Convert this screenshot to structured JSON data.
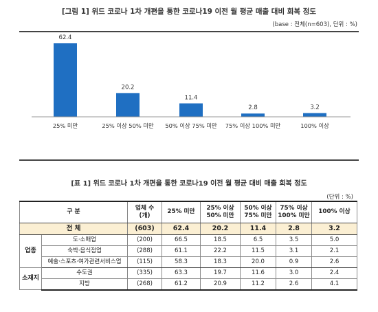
{
  "figure": {
    "title": "[그림 1] 위드 코로나 1차 개편을 통한 코로나19 이전 월 평균 매출 대비 회복 정도",
    "note": "(base : 전체(n=603), 단위 : %)"
  },
  "chart_data": {
    "type": "bar",
    "categories": [
      "25% 미만",
      "25% 이상 50% 미만",
      "50% 이상 75% 미만",
      "75% 이상 100% 미만",
      "100% 이상"
    ],
    "values": [
      62.4,
      20.2,
      11.4,
      2.8,
      3.2
    ],
    "value_labels": [
      "62.4",
      "20.2",
      "11.4",
      "2.8",
      "3.2"
    ],
    "ylim": [
      0,
      70
    ],
    "bar_color": "#1f6fc2",
    "grid": false
  },
  "table": {
    "title": "[표 1] 위드 코로나 1차 개편을 통한 코로나19 이전 월 평균 대비 매출 회복 정도",
    "unit": "(단위 : %)",
    "headers": {
      "category": "구  분",
      "count_line1": "업체 수",
      "count_line2": "(개)",
      "c1": "25% 미만",
      "c2_line1": "25% 이상",
      "c2_line2": "50% 미만",
      "c3_line1": "50% 이상",
      "c3_line2": "75% 미만",
      "c4_line1": "75% 이상",
      "c4_line2": "100% 미만",
      "c5": "100% 이상"
    },
    "total": {
      "label": "전  체",
      "count": "(603)",
      "values": [
        "62.4",
        "20.2",
        "11.4",
        "2.8",
        "3.2"
      ]
    },
    "groups": [
      {
        "name": "업종",
        "rows": [
          {
            "label": "도·소매업",
            "count": "(200)",
            "values": [
              "66.5",
              "18.5",
              "6.5",
              "3.5",
              "5.0"
            ]
          },
          {
            "label": "숙박·음식점업",
            "count": "(288)",
            "values": [
              "61.1",
              "22.2",
              "11.5",
              "3.1",
              "2.1"
            ]
          },
          {
            "label": "예술·스포츠·여가관련서비스업",
            "count": "(115)",
            "values": [
              "58.3",
              "18.3",
              "20.0",
              "0.9",
              "2.6"
            ]
          }
        ]
      },
      {
        "name": "소재지",
        "rows": [
          {
            "label": "수도권",
            "count": "(335)",
            "values": [
              "63.3",
              "19.7",
              "11.6",
              "3.0",
              "2.4"
            ]
          },
          {
            "label": "지방",
            "count": "(268)",
            "values": [
              "61.2",
              "20.9",
              "11.2",
              "2.6",
              "4.1"
            ]
          }
        ]
      }
    ]
  }
}
